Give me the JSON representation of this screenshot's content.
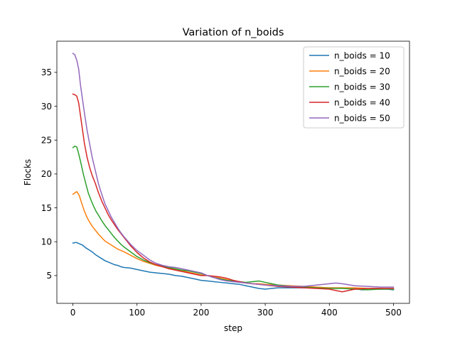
{
  "chart_data": {
    "type": "line",
    "title": "Variation of n_boids",
    "xlabel": "step",
    "ylabel": "Flocks",
    "xlim": [
      -25,
      525
    ],
    "ylim": [
      0.9,
      39.6
    ],
    "xticks": [
      0,
      100,
      200,
      300,
      400,
      500
    ],
    "yticks": [
      5,
      10,
      15,
      20,
      25,
      30,
      35
    ],
    "grid": false,
    "legend_position": "top-right",
    "series": [
      {
        "name": "n_boids = 10",
        "color": "#1f77b4",
        "points": [
          [
            0,
            9.8
          ],
          [
            5,
            9.9
          ],
          [
            10,
            9.7
          ],
          [
            15,
            9.5
          ],
          [
            20,
            9.1
          ],
          [
            25,
            8.8
          ],
          [
            30,
            8.5
          ],
          [
            35,
            8.1
          ],
          [
            40,
            7.8
          ],
          [
            45,
            7.5
          ],
          [
            50,
            7.2
          ],
          [
            55,
            7.0
          ],
          [
            60,
            6.8
          ],
          [
            65,
            6.6
          ],
          [
            70,
            6.5
          ],
          [
            75,
            6.3
          ],
          [
            80,
            6.2
          ],
          [
            90,
            6.1
          ],
          [
            100,
            5.9
          ],
          [
            110,
            5.7
          ],
          [
            120,
            5.5
          ],
          [
            130,
            5.4
          ],
          [
            140,
            5.3
          ],
          [
            150,
            5.2
          ],
          [
            160,
            5.0
          ],
          [
            170,
            4.9
          ],
          [
            180,
            4.7
          ],
          [
            190,
            4.5
          ],
          [
            200,
            4.3
          ],
          [
            210,
            4.2
          ],
          [
            220,
            4.1
          ],
          [
            230,
            4.0
          ],
          [
            240,
            3.9
          ],
          [
            250,
            3.8
          ],
          [
            260,
            3.7
          ],
          [
            270,
            3.5
          ],
          [
            280,
            3.3
          ],
          [
            290,
            3.1
          ],
          [
            300,
            3.0
          ],
          [
            310,
            3.1
          ],
          [
            320,
            3.2
          ],
          [
            340,
            3.2
          ],
          [
            360,
            3.2
          ],
          [
            380,
            3.2
          ],
          [
            400,
            3.2
          ],
          [
            420,
            3.2
          ],
          [
            440,
            3.1
          ],
          [
            450,
            2.9
          ],
          [
            460,
            2.9
          ],
          [
            470,
            3.0
          ],
          [
            480,
            3.0
          ],
          [
            490,
            3.0
          ],
          [
            500,
            2.9
          ]
        ]
      },
      {
        "name": "n_boids = 20",
        "color": "#ff7f0e",
        "points": [
          [
            0,
            17.0
          ],
          [
            3,
            17.2
          ],
          [
            6,
            17.4
          ],
          [
            10,
            16.8
          ],
          [
            14,
            15.6
          ],
          [
            18,
            14.5
          ],
          [
            22,
            13.6
          ],
          [
            26,
            12.9
          ],
          [
            30,
            12.3
          ],
          [
            35,
            11.7
          ],
          [
            40,
            11.1
          ],
          [
            45,
            10.6
          ],
          [
            50,
            10.1
          ],
          [
            55,
            9.8
          ],
          [
            60,
            9.5
          ],
          [
            65,
            9.2
          ],
          [
            70,
            8.9
          ],
          [
            80,
            8.5
          ],
          [
            90,
            8.0
          ],
          [
            100,
            7.5
          ],
          [
            110,
            7.1
          ],
          [
            120,
            6.8
          ],
          [
            130,
            6.5
          ],
          [
            140,
            6.3
          ],
          [
            150,
            6.1
          ],
          [
            160,
            5.9
          ],
          [
            170,
            5.7
          ],
          [
            180,
            5.5
          ],
          [
            190,
            5.3
          ],
          [
            200,
            5.1
          ],
          [
            210,
            5.0
          ],
          [
            220,
            4.9
          ],
          [
            230,
            4.6
          ],
          [
            240,
            4.4
          ],
          [
            250,
            4.2
          ],
          [
            260,
            4.0
          ],
          [
            270,
            3.9
          ],
          [
            280,
            3.8
          ],
          [
            290,
            3.8
          ],
          [
            300,
            3.7
          ],
          [
            320,
            3.6
          ],
          [
            340,
            3.5
          ],
          [
            360,
            3.4
          ],
          [
            380,
            3.3
          ],
          [
            400,
            3.2
          ],
          [
            420,
            3.2
          ],
          [
            440,
            3.2
          ],
          [
            460,
            3.1
          ],
          [
            480,
            3.1
          ],
          [
            500,
            3.0
          ]
        ]
      },
      {
        "name": "n_boids = 30",
        "color": "#2ca02c",
        "points": [
          [
            0,
            23.9
          ],
          [
            3,
            24.1
          ],
          [
            6,
            24.0
          ],
          [
            9,
            23.0
          ],
          [
            12,
            21.8
          ],
          [
            16,
            20.1
          ],
          [
            20,
            18.6
          ],
          [
            24,
            17.2
          ],
          [
            28,
            16.2
          ],
          [
            32,
            15.3
          ],
          [
            36,
            14.5
          ],
          [
            40,
            13.9
          ],
          [
            45,
            13.1
          ],
          [
            50,
            12.4
          ],
          [
            55,
            11.8
          ],
          [
            60,
            11.2
          ],
          [
            65,
            10.6
          ],
          [
            70,
            10.1
          ],
          [
            75,
            9.6
          ],
          [
            80,
            9.2
          ],
          [
            90,
            8.5
          ],
          [
            100,
            7.8
          ],
          [
            110,
            7.3
          ],
          [
            120,
            6.9
          ],
          [
            130,
            6.6
          ],
          [
            140,
            6.4
          ],
          [
            150,
            6.2
          ],
          [
            160,
            6.0
          ],
          [
            170,
            5.8
          ],
          [
            180,
            5.7
          ],
          [
            190,
            5.5
          ],
          [
            200,
            5.3
          ],
          [
            210,
            5.0
          ],
          [
            220,
            4.7
          ],
          [
            230,
            4.5
          ],
          [
            240,
            4.3
          ],
          [
            250,
            4.2
          ],
          [
            260,
            4.1
          ],
          [
            270,
            4.0
          ],
          [
            280,
            4.1
          ],
          [
            290,
            4.2
          ],
          [
            300,
            4.0
          ],
          [
            310,
            3.8
          ],
          [
            320,
            3.6
          ],
          [
            340,
            3.4
          ],
          [
            360,
            3.3
          ],
          [
            380,
            3.2
          ],
          [
            400,
            3.1
          ],
          [
            420,
            3.1
          ],
          [
            440,
            3.0
          ],
          [
            460,
            2.9
          ],
          [
            480,
            3.0
          ],
          [
            500,
            3.0
          ]
        ]
      },
      {
        "name": "n_boids = 40",
        "color": "#d62728",
        "points": [
          [
            0,
            31.8
          ],
          [
            3,
            31.7
          ],
          [
            6,
            31.5
          ],
          [
            9,
            30.5
          ],
          [
            12,
            28.5
          ],
          [
            15,
            26.5
          ],
          [
            18,
            24.5
          ],
          [
            22,
            22.5
          ],
          [
            26,
            21.0
          ],
          [
            30,
            19.8
          ],
          [
            35,
            18.6
          ],
          [
            40,
            17.2
          ],
          [
            45,
            16.0
          ],
          [
            50,
            15.0
          ],
          [
            55,
            14.0
          ],
          [
            60,
            13.2
          ],
          [
            65,
            12.5
          ],
          [
            70,
            11.8
          ],
          [
            75,
            11.2
          ],
          [
            80,
            10.6
          ],
          [
            90,
            9.4
          ],
          [
            100,
            8.4
          ],
          [
            110,
            7.6
          ],
          [
            120,
            7.0
          ],
          [
            130,
            6.6
          ],
          [
            140,
            6.3
          ],
          [
            150,
            6.0
          ],
          [
            160,
            5.8
          ],
          [
            170,
            5.6
          ],
          [
            180,
            5.4
          ],
          [
            190,
            5.2
          ],
          [
            200,
            5.0
          ],
          [
            210,
            5.0
          ],
          [
            220,
            4.9
          ],
          [
            230,
            4.8
          ],
          [
            240,
            4.6
          ],
          [
            250,
            4.3
          ],
          [
            260,
            4.1
          ],
          [
            270,
            3.9
          ],
          [
            280,
            3.8
          ],
          [
            290,
            3.7
          ],
          [
            300,
            3.6
          ],
          [
            320,
            3.4
          ],
          [
            340,
            3.3
          ],
          [
            360,
            3.2
          ],
          [
            380,
            3.1
          ],
          [
            400,
            3.0
          ],
          [
            410,
            2.8
          ],
          [
            420,
            2.6
          ],
          [
            430,
            2.8
          ],
          [
            440,
            3.0
          ],
          [
            460,
            3.1
          ],
          [
            480,
            3.1
          ],
          [
            500,
            3.1
          ]
        ]
      },
      {
        "name": "n_boids = 50",
        "color": "#9467bd",
        "points": [
          [
            0,
            37.8
          ],
          [
            3,
            37.6
          ],
          [
            6,
            36.8
          ],
          [
            9,
            35.5
          ],
          [
            12,
            33.0
          ],
          [
            15,
            31.0
          ],
          [
            18,
            29.0
          ],
          [
            22,
            26.5
          ],
          [
            26,
            24.5
          ],
          [
            30,
            22.5
          ],
          [
            35,
            20.5
          ],
          [
            40,
            18.5
          ],
          [
            45,
            17.0
          ],
          [
            50,
            15.6
          ],
          [
            55,
            14.6
          ],
          [
            60,
            13.6
          ],
          [
            65,
            12.8
          ],
          [
            70,
            12.0
          ],
          [
            75,
            11.3
          ],
          [
            80,
            10.7
          ],
          [
            90,
            9.6
          ],
          [
            100,
            8.7
          ],
          [
            110,
            8.0
          ],
          [
            120,
            7.3
          ],
          [
            130,
            6.8
          ],
          [
            140,
            6.5
          ],
          [
            150,
            6.3
          ],
          [
            160,
            6.2
          ],
          [
            170,
            6.0
          ],
          [
            180,
            5.8
          ],
          [
            190,
            5.6
          ],
          [
            200,
            5.4
          ],
          [
            210,
            5.0
          ],
          [
            220,
            4.7
          ],
          [
            230,
            4.4
          ],
          [
            240,
            4.2
          ],
          [
            250,
            4.1
          ],
          [
            260,
            4.0
          ],
          [
            270,
            3.9
          ],
          [
            280,
            3.8
          ],
          [
            290,
            3.7
          ],
          [
            300,
            3.6
          ],
          [
            320,
            3.5
          ],
          [
            340,
            3.4
          ],
          [
            360,
            3.4
          ],
          [
            380,
            3.6
          ],
          [
            400,
            3.8
          ],
          [
            410,
            3.9
          ],
          [
            420,
            3.8
          ],
          [
            440,
            3.5
          ],
          [
            460,
            3.4
          ],
          [
            480,
            3.3
          ],
          [
            500,
            3.3
          ]
        ]
      }
    ]
  }
}
